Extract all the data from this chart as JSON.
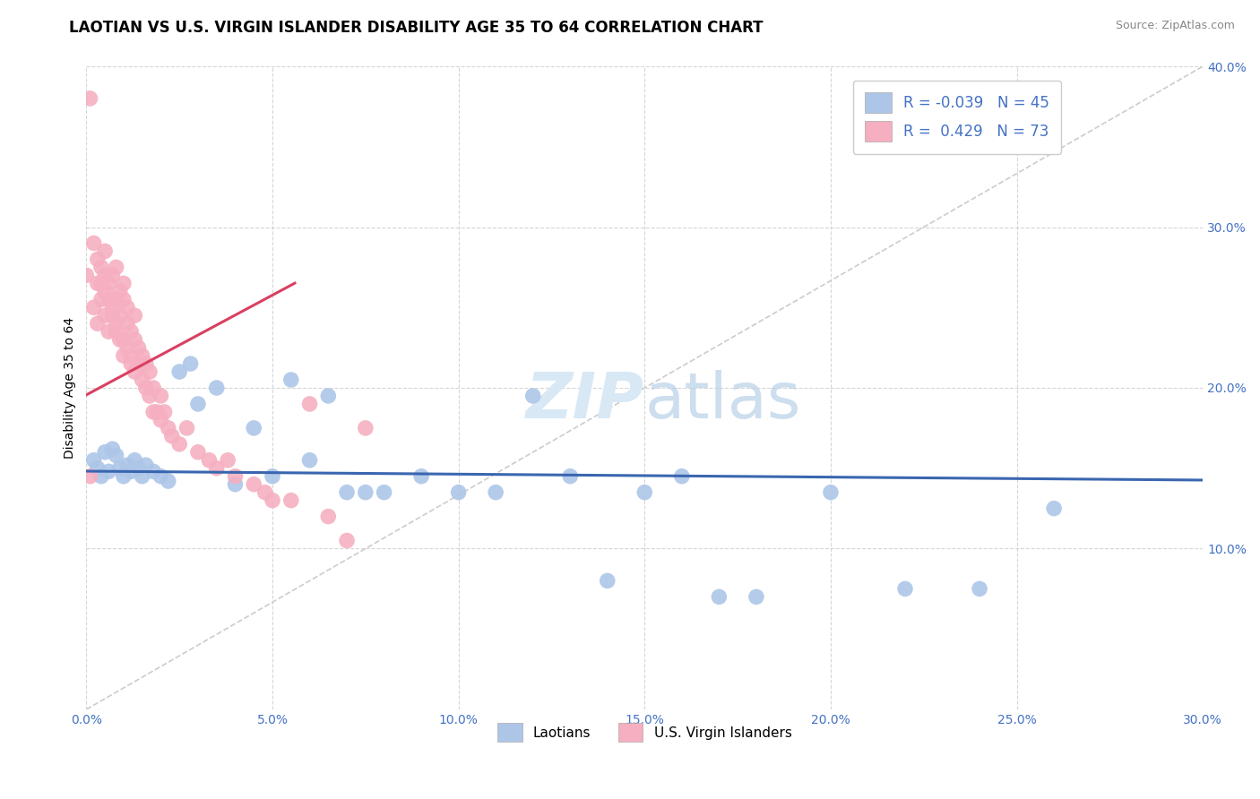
{
  "title": "LAOTIAN VS U.S. VIRGIN ISLANDER DISABILITY AGE 35 TO 64 CORRELATION CHART",
  "source": "Source: ZipAtlas.com",
  "ylabel": "Disability Age 35 to 64",
  "xlim": [
    0.0,
    0.3
  ],
  "ylim": [
    0.0,
    0.4
  ],
  "xticks": [
    0.0,
    0.05,
    0.1,
    0.15,
    0.2,
    0.25,
    0.3
  ],
  "yticks": [
    0.0,
    0.1,
    0.2,
    0.3,
    0.4
  ],
  "xtick_labels": [
    "0.0%",
    "5.0%",
    "10.0%",
    "15.0%",
    "20.0%",
    "25.0%",
    "30.0%"
  ],
  "ytick_labels": [
    "",
    "10.0%",
    "20.0%",
    "30.0%",
    "40.0%"
  ],
  "legend_labels": [
    "Laotians",
    "U.S. Virgin Islanders"
  ],
  "R_blue": -0.039,
  "N_blue": 45,
  "R_pink": 0.429,
  "N_pink": 73,
  "blue_color": "#adc6e8",
  "pink_color": "#f5afc0",
  "blue_line_color": "#3a66b0",
  "pink_line_color": "#d94060",
  "watermark_color": "#d8e8f5",
  "background_color": "#ffffff",
  "grid_color": "#cccccc",
  "title_fontsize": 12,
  "axis_label_fontsize": 10,
  "tick_fontsize": 10,
  "blue_scatter_x": [
    0.002,
    0.003,
    0.004,
    0.005,
    0.006,
    0.007,
    0.008,
    0.009,
    0.01,
    0.011,
    0.012,
    0.013,
    0.014,
    0.015,
    0.016,
    0.018,
    0.02,
    0.022,
    0.025,
    0.028,
    0.03,
    0.035,
    0.04,
    0.045,
    0.05,
    0.055,
    0.06,
    0.065,
    0.07,
    0.075,
    0.08,
    0.09,
    0.1,
    0.11,
    0.12,
    0.13,
    0.14,
    0.15,
    0.16,
    0.17,
    0.18,
    0.2,
    0.22,
    0.24,
    0.26
  ],
  "blue_scatter_y": [
    0.155,
    0.15,
    0.145,
    0.16,
    0.148,
    0.162,
    0.158,
    0.15,
    0.145,
    0.152,
    0.148,
    0.155,
    0.15,
    0.145,
    0.152,
    0.148,
    0.145,
    0.142,
    0.21,
    0.215,
    0.19,
    0.2,
    0.14,
    0.175,
    0.145,
    0.205,
    0.155,
    0.195,
    0.135,
    0.135,
    0.135,
    0.145,
    0.135,
    0.135,
    0.195,
    0.145,
    0.08,
    0.135,
    0.145,
    0.07,
    0.07,
    0.135,
    0.075,
    0.075,
    0.125
  ],
  "pink_scatter_x": [
    0.0,
    0.001,
    0.001,
    0.002,
    0.002,
    0.003,
    0.003,
    0.003,
    0.004,
    0.004,
    0.004,
    0.005,
    0.005,
    0.005,
    0.005,
    0.006,
    0.006,
    0.006,
    0.007,
    0.007,
    0.007,
    0.008,
    0.008,
    0.008,
    0.008,
    0.009,
    0.009,
    0.009,
    0.01,
    0.01,
    0.01,
    0.01,
    0.011,
    0.011,
    0.011,
    0.012,
    0.012,
    0.012,
    0.013,
    0.013,
    0.013,
    0.014,
    0.014,
    0.015,
    0.015,
    0.015,
    0.016,
    0.016,
    0.017,
    0.017,
    0.018,
    0.018,
    0.019,
    0.02,
    0.02,
    0.021,
    0.022,
    0.023,
    0.025,
    0.027,
    0.03,
    0.033,
    0.035,
    0.038,
    0.04,
    0.045,
    0.048,
    0.05,
    0.055,
    0.06,
    0.065,
    0.07,
    0.075
  ],
  "pink_scatter_y": [
    0.27,
    0.38,
    0.145,
    0.29,
    0.25,
    0.265,
    0.28,
    0.24,
    0.265,
    0.255,
    0.275,
    0.26,
    0.285,
    0.245,
    0.27,
    0.235,
    0.265,
    0.255,
    0.245,
    0.27,
    0.25,
    0.255,
    0.24,
    0.275,
    0.235,
    0.26,
    0.23,
    0.245,
    0.23,
    0.255,
    0.22,
    0.265,
    0.225,
    0.24,
    0.25,
    0.22,
    0.235,
    0.215,
    0.23,
    0.245,
    0.21,
    0.225,
    0.215,
    0.205,
    0.22,
    0.215,
    0.2,
    0.215,
    0.195,
    0.21,
    0.185,
    0.2,
    0.185,
    0.18,
    0.195,
    0.185,
    0.175,
    0.17,
    0.165,
    0.175,
    0.16,
    0.155,
    0.15,
    0.155,
    0.145,
    0.14,
    0.135,
    0.13,
    0.13,
    0.19,
    0.12,
    0.105,
    0.175
  ]
}
